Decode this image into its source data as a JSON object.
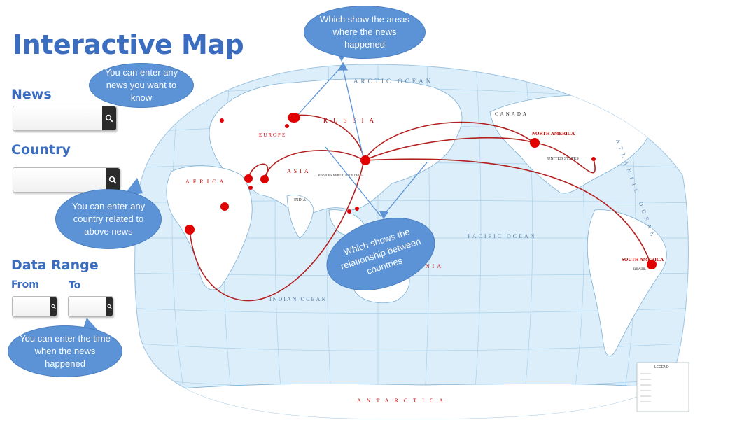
{
  "page": {
    "title": "Interactive Map"
  },
  "form": {
    "news_label": "News",
    "country_label": "Country",
    "date_range_label": "Data Range",
    "from_label": "From",
    "to_label": "To",
    "news_value": "",
    "country_value": "",
    "from_value": "",
    "to_value": ""
  },
  "callouts": {
    "areas": "Which show the areas where the news happened",
    "news": "You can enter any news you want to know",
    "country": "You can enter any country related to above news",
    "relationship": "Which shows the relationship between countries",
    "time": "You can enter the time when the news happened"
  },
  "map": {
    "labels": {
      "arctic": "ARCTIC OCEAN",
      "canada": "CANADA",
      "north_america": "NORTH AMERICA",
      "united_states": "UNITED STATES",
      "russia": "RUSSIA",
      "europe": "EUROPE",
      "africa": "AFRICA",
      "asia": "ASIA",
      "prc": "PEOPLE'S REPUBLIC OF CHINA",
      "india": "INDIA",
      "pacific": "PACIFIC OCEAN",
      "indian": "INDIAN OCEAN",
      "south_america": "SOUTH AMERICA",
      "brazil": "BRAZIL",
      "oceania": "OCEANIA",
      "antarctica": "ANTARCTICA",
      "atlantic": "ATLANTIC OCEAN",
      "legend": "LEGEND"
    },
    "accent": "#e00000",
    "ocean": "#dceefa",
    "land": "#ffffff"
  }
}
